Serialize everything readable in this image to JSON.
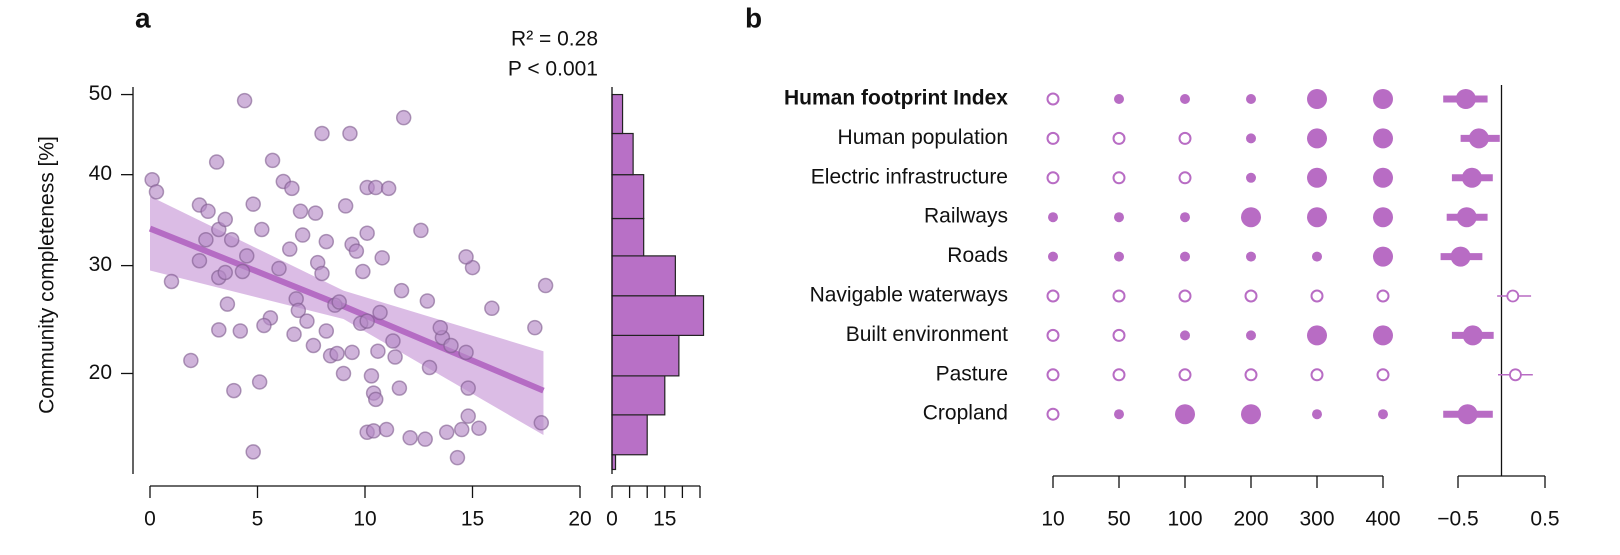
{
  "chart_data": [
    {
      "type": "scatter",
      "panel": "a",
      "ylabel": "Community completeness [%]",
      "annotations": [
        "R² = 0.28",
        "P < 0.001"
      ],
      "color": "#b58ac6",
      "line_color": "#b56cc4",
      "band_color": "#cfa6dc",
      "yscale": "sqrt",
      "xlim": [
        0,
        20
      ],
      "xticks": [
        0,
        5,
        10,
        15,
        20
      ],
      "ylim": [
        12.5,
        51
      ],
      "yticks": [
        20,
        30,
        40,
        50
      ],
      "x": [
        0.1,
        0.3,
        4.4,
        11.8,
        8.0,
        3.1,
        5.7,
        6.2,
        6.6,
        1.0,
        2.3,
        2.7,
        3.2,
        3.5,
        3.8,
        2.3,
        3.2,
        3.5,
        2.6,
        3.2,
        4.3,
        5.2,
        4.8,
        6.0,
        6.5,
        6.8,
        7.0,
        7.7,
        8.2,
        7.1,
        7.8,
        9.1,
        9.4,
        9.6,
        9.9,
        10.1,
        10.5,
        11.1,
        10.8,
        10.1,
        8.0,
        6.9,
        6.7,
        7.3,
        7.6,
        8.2,
        8.6,
        8.8,
        8.4,
        8.7,
        9.0,
        9.4,
        9.8,
        10.1,
        10.3,
        10.4,
        10.5,
        10.6,
        10.7,
        11.3,
        11.4,
        11.6,
        11.7,
        12.6,
        12.9,
        13.0,
        13.6,
        13.5,
        14.0,
        14.7,
        14.8,
        14.8,
        15.0,
        14.7,
        15.3,
        15.9,
        17.9,
        18.4,
        18.2,
        12.1,
        12.8,
        13.8,
        14.5,
        14.3,
        10.1,
        10.4,
        11.0,
        3.9,
        5.1,
        4.8,
        1.9,
        4.2,
        4.5,
        5.6,
        5.3,
        3.6,
        9.3
      ],
      "values": [
        39.4,
        38.0,
        49.2,
        47.0,
        45.0,
        41.5,
        41.7,
        39.2,
        38.4,
        28.4,
        36.5,
        35.8,
        33.8,
        34.9,
        32.7,
        30.5,
        28.8,
        29.3,
        32.7,
        23.8,
        29.4,
        33.8,
        36.6,
        29.7,
        31.7,
        26.7,
        35.8,
        35.6,
        32.5,
        33.2,
        30.3,
        36.4,
        32.2,
        31.5,
        29.4,
        38.5,
        38.5,
        38.4,
        30.8,
        33.4,
        29.2,
        25.6,
        23.4,
        24.6,
        22.4,
        23.7,
        26.1,
        26.4,
        21.5,
        21.7,
        20.0,
        21.8,
        24.4,
        24.6,
        19.8,
        18.4,
        17.9,
        21.9,
        25.4,
        22.8,
        21.4,
        18.8,
        27.5,
        33.7,
        26.5,
        20.5,
        23.1,
        24.0,
        22.4,
        21.8,
        18.8,
        16.6,
        29.8,
        30.9,
        15.7,
        25.8,
        24.0,
        28.0,
        16.1,
        15.0,
        14.9,
        15.4,
        15.6,
        13.6,
        15.4,
        15.5,
        15.6,
        18.6,
        19.3,
        14.0,
        21.1,
        23.7,
        31.0,
        24.9,
        24.2,
        26.2,
        45.0
      ],
      "fit": {
        "x": [
          0,
          9,
          18.3
        ],
        "values": [
          33.9,
          26.0,
          18.6
        ],
        "lower": [
          29.5,
          24.8,
          15.2
        ],
        "upper": [
          37.5,
          27.5,
          21.9
        ]
      }
    },
    {
      "type": "histogram",
      "orientation": "horizontal",
      "color": "#b870c6",
      "bins": [
        12.8,
        13.8,
        16.7,
        19.8,
        23.3,
        27,
        31,
        35,
        40,
        45,
        50
      ],
      "counts": [
        1,
        10,
        15,
        19,
        26,
        18,
        9,
        9,
        6,
        3
      ],
      "xlim": [
        0,
        25
      ],
      "xticks": [
        0,
        15
      ],
      "minor_xticks": [
        5,
        10,
        20,
        25
      ]
    },
    {
      "type": "dotmatrix",
      "panel": "b",
      "color": "#b86cc4",
      "rows": [
        "Human footprint Index",
        "Human population",
        "Electric infrastructure",
        "Railways",
        "Roads",
        "Navigable waterways",
        "Built environment",
        "Pasture",
        "Cropland"
      ],
      "bold_rows": [
        0
      ],
      "categories": [
        "10",
        "50",
        "100",
        "200",
        "300",
        "400"
      ],
      "values": [
        [
          0,
          1,
          1,
          1,
          2,
          2
        ],
        [
          0,
          0,
          0,
          1,
          2,
          2
        ],
        [
          0,
          0,
          0,
          1,
          2,
          2
        ],
        [
          1,
          1,
          1,
          2,
          2,
          2
        ],
        [
          1,
          1,
          1,
          1,
          1,
          2
        ],
        [
          0,
          0,
          0,
          0,
          0,
          0
        ],
        [
          0,
          0,
          1,
          1,
          2,
          2
        ],
        [
          0,
          0,
          0,
          0,
          0,
          0
        ],
        [
          0,
          1,
          2,
          2,
          1,
          1
        ]
      ]
    },
    {
      "type": "forest",
      "color": "#b86cc4",
      "values": [
        -0.41,
        -0.26,
        -0.34,
        -0.4,
        -0.47,
        0.13,
        -0.33,
        0.16,
        -0.39
      ],
      "lower": [
        -0.67,
        -0.47,
        -0.57,
        -0.63,
        -0.7,
        -0.05,
        -0.57,
        -0.04,
        -0.67
      ],
      "upper": [
        -0.16,
        -0.02,
        -0.1,
        -0.16,
        -0.22,
        0.34,
        -0.09,
        0.36,
        -0.1
      ],
      "refline": 0,
      "xlim": [
        -0.5,
        0.5
      ],
      "xticks": [
        {
          "value": -0.5,
          "label": "−0.5"
        },
        0.5
      ]
    }
  ]
}
